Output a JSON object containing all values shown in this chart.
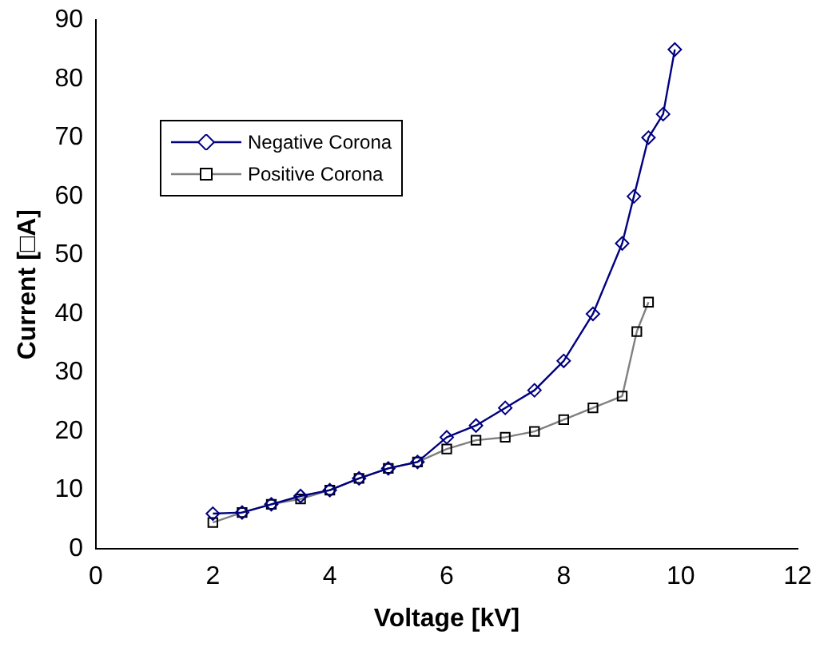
{
  "chart_data": {
    "type": "line",
    "xlabel": "Voltage [kV]",
    "ylabel": "Current [□A]",
    "xlim": [
      0,
      12
    ],
    "xticks": [
      0,
      2,
      4,
      6,
      8,
      10,
      12
    ],
    "ylim": [
      0,
      90
    ],
    "yticks": [
      0,
      10,
      20,
      30,
      40,
      50,
      60,
      70,
      80,
      90
    ],
    "grid": false,
    "legend": "top left",
    "series": [
      {
        "name": "Negative Corona",
        "color": "#000080",
        "marker": "diamond",
        "x": [
          2,
          2.5,
          3,
          3.5,
          4,
          4.5,
          5,
          5.5,
          6,
          6.5,
          7,
          7.5,
          8,
          8.5,
          9,
          9.2,
          9.45,
          9.7,
          9.9
        ],
        "values": [
          6,
          6.2,
          7.6,
          9,
          10,
          12,
          13.7,
          14.8,
          19,
          21,
          24,
          27,
          32,
          40,
          52,
          60,
          70,
          74,
          85
        ]
      },
      {
        "name": "Positive Corona",
        "color": "#808080",
        "marker": "square",
        "x": [
          2,
          2.5,
          3,
          3.5,
          4,
          4.5,
          5,
          5.5,
          6,
          6.5,
          7,
          7.5,
          8,
          8.5,
          9,
          9.25,
          9.45
        ],
        "values": [
          4.5,
          6.2,
          7.6,
          8.5,
          10,
          12,
          13.7,
          14.8,
          17,
          18.5,
          19,
          20,
          22,
          24,
          26,
          37,
          42
        ]
      }
    ]
  }
}
